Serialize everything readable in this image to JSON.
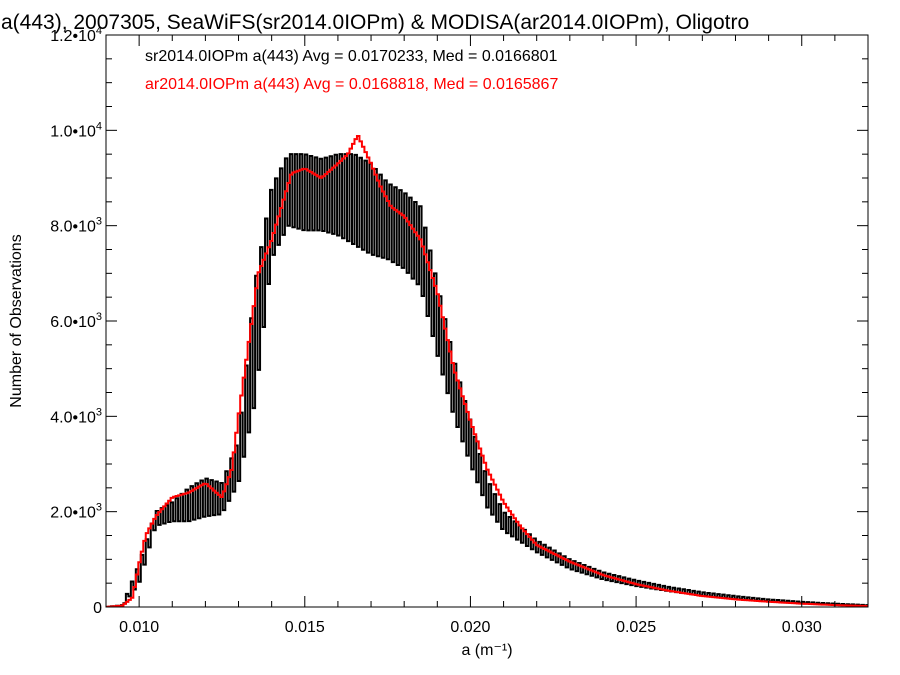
{
  "chart_data": {
    "type": "line",
    "title": "a(443), 2007305, SeaWiFS(sr2014.0IOPm) & MODISA(ar2014.0IOPm), Oligotro",
    "xlabel": "a (m⁻¹)",
    "ylabel": "Number of Observations",
    "xlim": [
      0.009,
      0.032
    ],
    "ylim": [
      0,
      12000
    ],
    "x_ticks": [
      0.01,
      0.015,
      0.02,
      0.025,
      0.03
    ],
    "x_tick_labels": [
      "0.010",
      "0.015",
      "0.020",
      "0.025",
      "0.030"
    ],
    "y_ticks": [
      0,
      2000,
      4000,
      6000,
      8000,
      10000,
      12000
    ],
    "y_tick_mantissa": [
      "0",
      "2.0•10",
      "4.0•10",
      "6.0•10",
      "8.0•10",
      "1.0•10",
      "1.2•10"
    ],
    "y_tick_exponent": [
      "",
      "3",
      "3",
      "3",
      "3",
      "4",
      "4"
    ],
    "grid": false,
    "legend_placement": "top-left",
    "series": [
      {
        "name": "sr2014.0IOPm",
        "legend_text": "sr2014.0IOPm a(443) Avg = 0.0170233, Med = 0.0166801",
        "color": "#000000",
        "histogram": true,
        "alternating": true,
        "x": [
          0.009,
          0.0095,
          0.01,
          0.0105,
          0.011,
          0.0115,
          0.012,
          0.0125,
          0.013,
          0.0135,
          0.014,
          0.0145,
          0.015,
          0.0155,
          0.016,
          0.0165,
          0.017,
          0.0175,
          0.018,
          0.0185,
          0.019,
          0.0195,
          0.02,
          0.0205,
          0.021,
          0.022,
          0.023,
          0.024,
          0.025,
          0.026,
          0.027,
          0.028,
          0.029,
          0.03,
          0.031,
          0.032
        ],
        "high": [
          0,
          40,
          900,
          2000,
          2200,
          2500,
          2700,
          2600,
          3500,
          6800,
          8800,
          9500,
          9500,
          9400,
          9500,
          9500,
          9300,
          8900,
          8700,
          8400,
          6800,
          5200,
          3900,
          2700,
          2000,
          1400,
          1000,
          730,
          560,
          420,
          310,
          230,
          160,
          110,
          70,
          40
        ],
        "low": [
          0,
          20,
          500,
          1700,
          1800,
          1800,
          1900,
          1950,
          2600,
          4300,
          7300,
          8000,
          7900,
          7900,
          7800,
          7600,
          7400,
          7300,
          7100,
          6700,
          5300,
          4000,
          3000,
          2100,
          1600,
          1150,
          800,
          580,
          440,
          330,
          240,
          170,
          120,
          80,
          50,
          25
        ]
      },
      {
        "name": "ar2014.0IOPm",
        "legend_text": "ar2014.0IOPm a(443) Avg = 0.0168818, Med = 0.0165867",
        "color": "#ff0000",
        "histogram": true,
        "alternating": false,
        "x": [
          0.009,
          0.0095,
          0.0098,
          0.01,
          0.0102,
          0.0105,
          0.011,
          0.0115,
          0.012,
          0.0125,
          0.0128,
          0.013,
          0.0133,
          0.0136,
          0.014,
          0.0143,
          0.0146,
          0.015,
          0.0155,
          0.016,
          0.0163,
          0.0166,
          0.017,
          0.0173,
          0.0176,
          0.018,
          0.0185,
          0.019,
          0.0195,
          0.02,
          0.0205,
          0.021,
          0.0215,
          0.022,
          0.023,
          0.024,
          0.025,
          0.026,
          0.027,
          0.028,
          0.029,
          0.03,
          0.031,
          0.032
        ],
        "values": [
          0,
          30,
          200,
          900,
          1500,
          1900,
          2300,
          2400,
          2600,
          2300,
          2900,
          4000,
          5500,
          7000,
          7700,
          8400,
          9100,
          9200,
          9000,
          9300,
          9500,
          9900,
          9300,
          8800,
          8400,
          8200,
          7700,
          6600,
          5000,
          3900,
          2900,
          2200,
          1700,
          1300,
          950,
          670,
          480,
          340,
          230,
          160,
          110,
          70,
          40,
          20
        ]
      }
    ]
  }
}
